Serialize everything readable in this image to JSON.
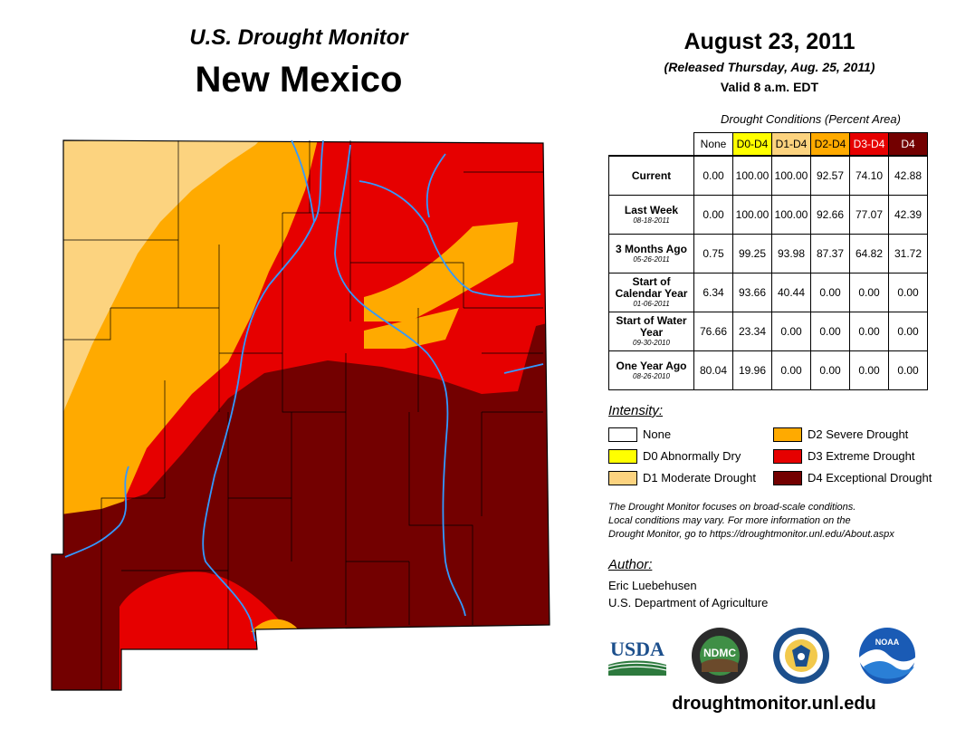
{
  "header": {
    "subtitle": "U.S. Drought Monitor",
    "state": "New Mexico",
    "date": "August 23, 2011",
    "released": "(Released Thursday, Aug. 25, 2011)",
    "valid": "Valid 8 a.m. EDT"
  },
  "table": {
    "caption": "Drought Conditions (Percent Area)",
    "columns": [
      {
        "label": "None",
        "color": "#ffffff",
        "text_color": "#000000"
      },
      {
        "label": "D0-D4",
        "color": "#ffff00",
        "text_color": "#000000"
      },
      {
        "label": "D1-D4",
        "color": "#fcd37f",
        "text_color": "#000000"
      },
      {
        "label": "D2-D4",
        "color": "#ffaa00",
        "text_color": "#000000"
      },
      {
        "label": "D3-D4",
        "color": "#e60000",
        "text_color": "#ffffff"
      },
      {
        "label": "D4",
        "color": "#730000",
        "text_color": "#ffffff"
      }
    ],
    "rows": [
      {
        "label": "Current",
        "date": "",
        "values": [
          "0.00",
          "100.00",
          "100.00",
          "92.57",
          "74.10",
          "42.88"
        ]
      },
      {
        "label": "Last Week",
        "date": "08-18-2011",
        "values": [
          "0.00",
          "100.00",
          "100.00",
          "92.66",
          "77.07",
          "42.39"
        ]
      },
      {
        "label": "3 Months Ago",
        "date": "05-26-2011",
        "values": [
          "0.75",
          "99.25",
          "93.98",
          "87.37",
          "64.82",
          "31.72"
        ]
      },
      {
        "label": "Start of Calendar Year",
        "date": "01-06-2011",
        "values": [
          "6.34",
          "93.66",
          "40.44",
          "0.00",
          "0.00",
          "0.00"
        ]
      },
      {
        "label": "Start of Water Year",
        "date": "09-30-2010",
        "values": [
          "76.66",
          "23.34",
          "0.00",
          "0.00",
          "0.00",
          "0.00"
        ]
      },
      {
        "label": "One Year Ago",
        "date": "08-26-2010",
        "values": [
          "80.04",
          "19.96",
          "0.00",
          "0.00",
          "0.00",
          "0.00"
        ]
      }
    ]
  },
  "legend": {
    "title": "Intensity:",
    "items": [
      {
        "label": "None",
        "color": "#ffffff"
      },
      {
        "label": "D0 Abnormally Dry",
        "color": "#ffff00"
      },
      {
        "label": "D1 Moderate Drought",
        "color": "#fcd37f"
      },
      {
        "label": "D2 Severe Drought",
        "color": "#ffaa00"
      },
      {
        "label": "D3 Extreme Drought",
        "color": "#e60000"
      },
      {
        "label": "D4 Exceptional Drought",
        "color": "#730000"
      }
    ]
  },
  "note": {
    "line1": "The Drought Monitor focuses on broad-scale conditions.",
    "line2": "Local conditions may vary. For more information on the",
    "line3": "Drought Monitor, go to https://droughtmonitor.unl.edu/About.aspx"
  },
  "author": {
    "title": "Author:",
    "name": "Eric Luebehusen",
    "org": "U.S. Department of Agriculture"
  },
  "logos": {
    "usda": "USDA",
    "ndmc": "NDMC",
    "noaa": "NOAA"
  },
  "footer": {
    "url": "droughtmonitor.unl.edu"
  },
  "colors": {
    "d1": "#fcd37f",
    "d2": "#ffaa00",
    "d3": "#e60000",
    "d4": "#730000",
    "river": "#3399ff",
    "border": "#000000"
  }
}
